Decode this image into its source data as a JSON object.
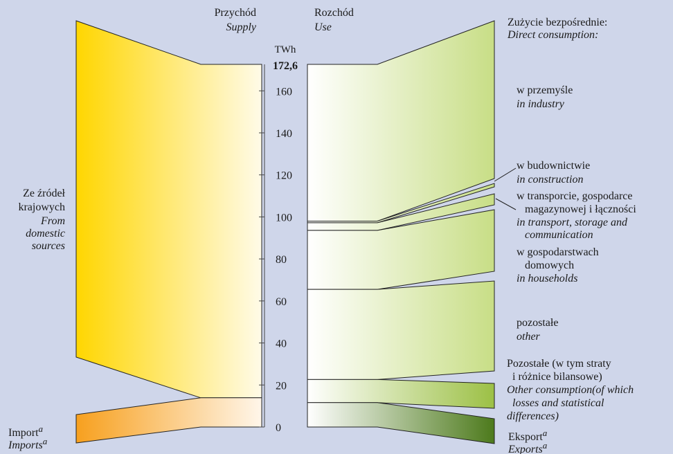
{
  "chart_data": {
    "type": "sankey",
    "unit": "TWh",
    "total": "172,6",
    "ylim": [
      0,
      172.6
    ],
    "yticks": [
      0,
      20,
      40,
      60,
      80,
      100,
      120,
      140,
      160
    ],
    "supply": {
      "title": "Przychód",
      "title_en": "Supply",
      "flows": [
        {
          "label": [
            "Ze źródeł",
            "krajowych"
          ],
          "label_en": [
            "From",
            "domestic",
            "sources"
          ],
          "from": 13.9,
          "to": 172.6
        },
        {
          "label": [
            "Import"
          ],
          "label_en": [
            "Imports"
          ],
          "note": "a",
          "from": 0,
          "to": 13.9
        }
      ]
    },
    "use": {
      "title": "Rozchód",
      "title_en": "Use",
      "header": "Zużycie bezpośrednie:",
      "header_en": "Direct consumption:",
      "flows": [
        {
          "label": [
            "w przemyśle"
          ],
          "label_en": [
            "in industry"
          ],
          "from": 98.0,
          "to": 172.6
        },
        {
          "label": [
            "w budownictwie"
          ],
          "label_en": [
            "in construction"
          ],
          "from": 97.2,
          "to": 98.0
        },
        {
          "label": [
            "w transporcie, gospodarce",
            "magazynowej i łączności"
          ],
          "label_en": [
            "in transport, storage and",
            "communication"
          ],
          "from": 93.6,
          "to": 97.2
        },
        {
          "label": [
            "w gospodarstwach",
            "domowych"
          ],
          "label_en": [
            "in households"
          ],
          "from": 65.5,
          "to": 93.6
        },
        {
          "label": [
            "pozostałe"
          ],
          "label_en": [
            "other"
          ],
          "from": 22.6,
          "to": 65.5
        },
        {
          "label": [
            "Pozostałe (w tym straty",
            "i różnice bilansowe)"
          ],
          "label_en": [
            "Other consumption(of which",
            "losses and statistical",
            "differences)"
          ],
          "from": 11.6,
          "to": 22.6
        },
        {
          "label": [
            "Eksport"
          ],
          "label_en": [
            "Exports"
          ],
          "note": "a",
          "from": 0,
          "to": 11.6
        }
      ]
    }
  }
}
